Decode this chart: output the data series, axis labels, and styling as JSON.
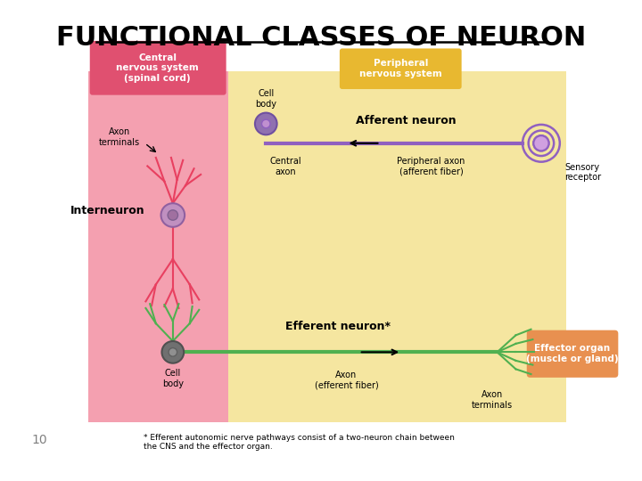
{
  "title": "FUNCTIONAL CLASSES OF NEURON",
  "title_fontsize": 22,
  "background_color": "#ffffff",
  "pink_bg": "#F4A0B0",
  "yellow_bg": "#F5E6A0",
  "cns_box_color": "#E05070",
  "pns_box_color": "#E8B830",
  "effector_box_color": "#E89050",
  "cns_label": "Central\nnervous system\n(spinal cord)",
  "pns_label": "Peripheral\nnervous system",
  "effector_label": "Effector organ\n(muscle or gland)",
  "afferent_color": "#9060C0",
  "interneuron_color": "#E84060",
  "efferent_color": "#50B050",
  "footnote": "* Efferent autonomic nerve pathways consist of a two-neuron chain between\nthe CNS and the effector organ.",
  "slide_number": "10"
}
